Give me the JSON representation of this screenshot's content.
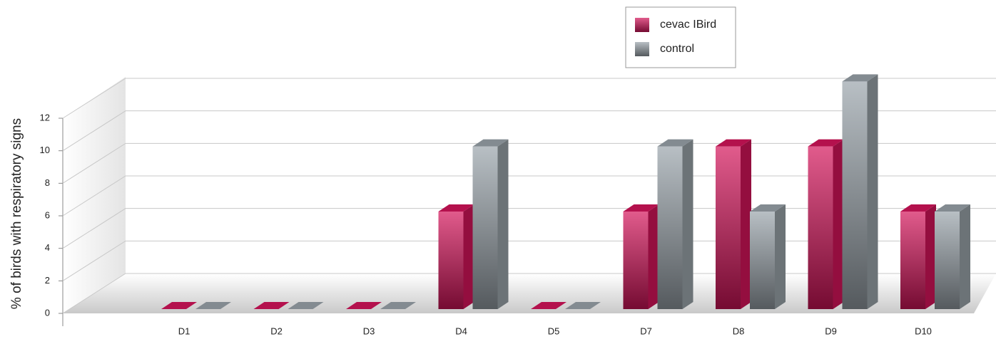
{
  "chart_data": {
    "type": "bar3d",
    "y_label": "% of birds with respiratory signs",
    "categories": [
      "D1",
      "D2",
      "D3",
      "D4",
      "D5",
      "D7",
      "D8",
      "D9",
      "D10"
    ],
    "series": [
      {
        "name": "cevac IBird",
        "color": "#d4145a",
        "values": [
          0,
          0,
          0,
          6,
          0,
          6,
          10,
          10,
          6
        ]
      },
      {
        "name": "control",
        "color": "#9aa4aa",
        "values": [
          0,
          0,
          0,
          10,
          0,
          10,
          6,
          14,
          6
        ]
      }
    ],
    "ylim": [
      0,
      12
    ],
    "yticks": [
      0,
      2,
      4,
      6,
      8,
      10,
      12
    ],
    "grid": true,
    "legend": "top"
  }
}
